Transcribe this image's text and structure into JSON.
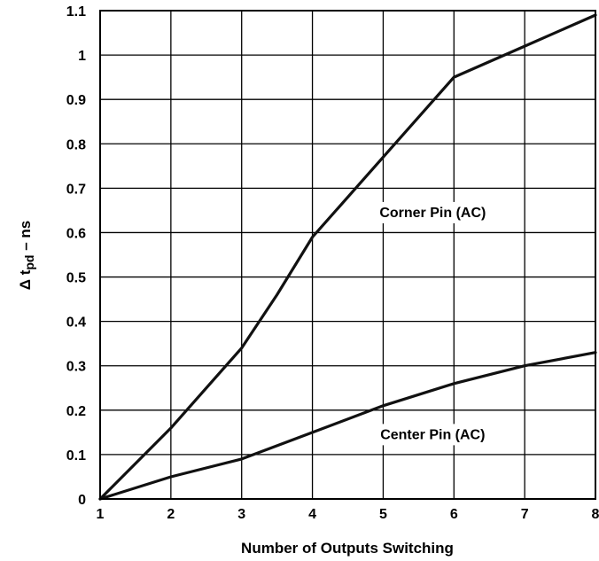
{
  "chart_data": {
    "type": "line",
    "xlabel": "Number of Outputs Switching",
    "ylabel_main": "Δ t",
    "ylabel_sub": "pd",
    "ylabel_tail": " – ns",
    "xlim": [
      1,
      8
    ],
    "ylim": [
      0,
      1.1
    ],
    "grid": true,
    "x_ticks": [
      "1",
      "2",
      "3",
      "4",
      "5",
      "6",
      "7",
      "8"
    ],
    "y_ticks": [
      "0",
      "0.1",
      "0.2",
      "0.3",
      "0.4",
      "0.5",
      "0.6",
      "0.7",
      "0.8",
      "0.9",
      "1",
      "1.1"
    ],
    "series": [
      {
        "name": "Corner Pin (AC)",
        "points": [
          [
            1,
            0
          ],
          [
            2,
            0.16
          ],
          [
            3,
            0.34
          ],
          [
            3.5,
            0.46
          ],
          [
            4,
            0.59
          ],
          [
            5,
            0.77
          ],
          [
            6,
            0.95
          ],
          [
            7,
            1.02
          ],
          [
            8,
            1.09
          ]
        ]
      },
      {
        "name": "Center Pin (AC)",
        "points": [
          [
            1,
            0
          ],
          [
            2,
            0.05
          ],
          [
            3,
            0.09
          ],
          [
            4,
            0.15
          ],
          [
            5,
            0.21
          ],
          [
            6,
            0.26
          ],
          [
            7,
            0.3
          ],
          [
            8,
            0.33
          ]
        ]
      }
    ],
    "annotations": [
      {
        "text": "Corner Pin (AC)",
        "x": 5.7,
        "y": 0.635
      },
      {
        "text": "Center Pin (AC)",
        "x": 5.7,
        "y": 0.135
      }
    ]
  }
}
